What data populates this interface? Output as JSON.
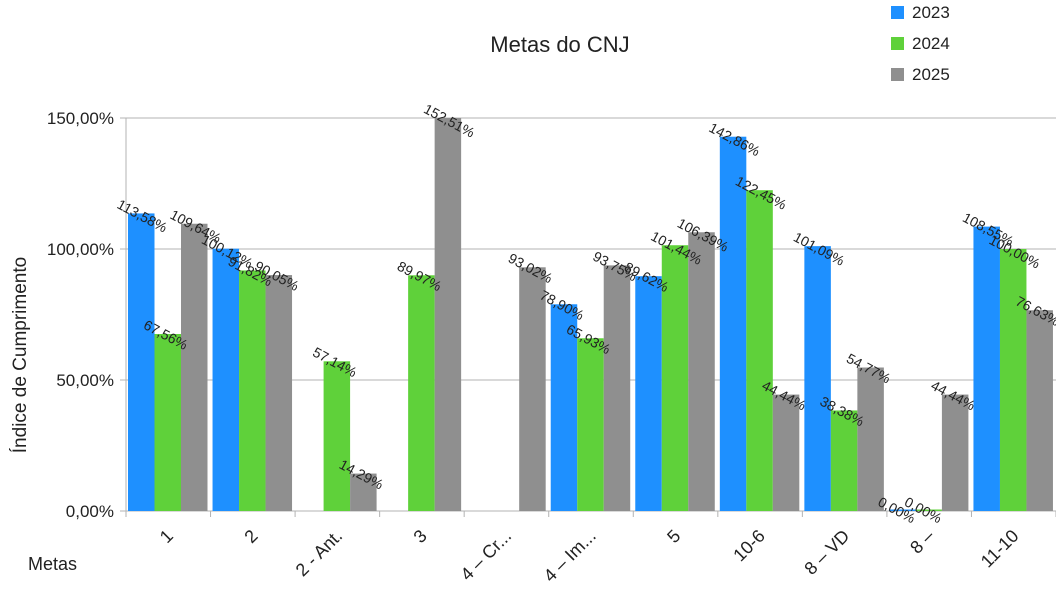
{
  "chart_data": {
    "type": "bar",
    "title": "Metas do CNJ",
    "xlabel": "Metas",
    "ylabel": "Índice de Cumprimento",
    "ylim": [
      0,
      150
    ],
    "yticks": [
      0,
      50,
      100,
      150
    ],
    "ytick_labels": [
      "0,00%",
      "50,00%",
      "100,00%",
      "150,00%"
    ],
    "grid": true,
    "legend_position": "top-right",
    "categories": [
      "1",
      "2",
      "2 - Ant.",
      "3",
      "4 – Cr...",
      "4 – Im...",
      "5",
      "10-6",
      "8 – VD",
      "8 –",
      "11-10"
    ],
    "series": [
      {
        "name": "2023",
        "color": "#1e90ff",
        "values": [
          113.58,
          100.12,
          null,
          null,
          null,
          78.9,
          89.62,
          142.86,
          101.09,
          0.0,
          108.55
        ],
        "labels": [
          "113,58%",
          "100,12%",
          null,
          null,
          null,
          "78,90%",
          "89,62%",
          "142,86%",
          "101,09%",
          "0,00%",
          "108,55%"
        ]
      },
      {
        "name": "2024",
        "color": "#5fd13a",
        "values": [
          67.56,
          91.82,
          57.14,
          89.97,
          null,
          65.93,
          101.44,
          122.45,
          38.38,
          0.0,
          100.0
        ],
        "labels": [
          "67,56%",
          "91,82%",
          "57,14%",
          "89,97%",
          null,
          "65,93%",
          "101,44%",
          "122,45%",
          "38,38%",
          "0,00%",
          "100,00%"
        ]
      },
      {
        "name": "2025",
        "color": "#8f8f8f",
        "values": [
          109.64,
          90.05,
          14.29,
          152.51,
          93.02,
          93.75,
          106.39,
          44.44,
          54.77,
          44.44,
          76.63
        ],
        "labels": [
          "109,64%",
          "90,05%",
          "14,29%",
          "152,51%",
          "93,02%",
          "93,75%",
          "106,39%",
          "44,44%",
          "54,77%",
          "44,44%",
          "76,63%"
        ]
      }
    ]
  }
}
